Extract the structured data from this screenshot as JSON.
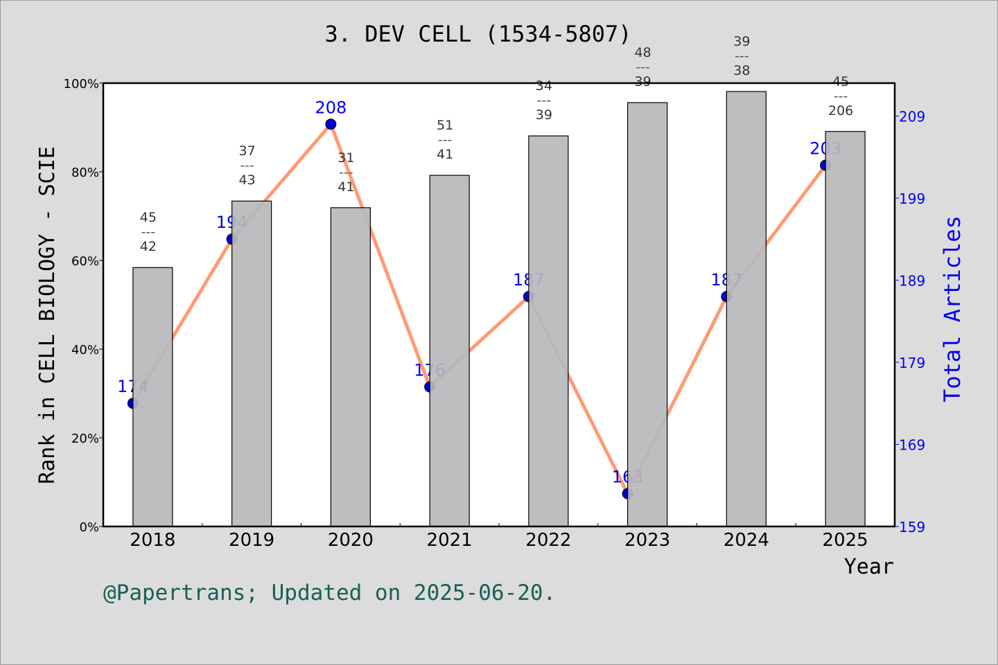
{
  "chart_data": {
    "type": "bar+line",
    "title": "3. DEV CELL (1534-5807)",
    "xlabel": "Year",
    "ylabel": "Rank in CELL BIOLOGY - SCIE",
    "y2label": "Total Articles",
    "categories": [
      "2018",
      "2019",
      "2020",
      "2021",
      "2022",
      "2023",
      "2024",
      "2025"
    ],
    "bars": {
      "values": [
        58.4,
        73.4,
        71.9,
        79.2,
        88.1,
        95.6,
        98.1,
        89.1
      ],
      "labels_top": [
        "45",
        "37",
        "31",
        "51",
        "34",
        "48",
        "39",
        "45"
      ],
      "labels_bottom": [
        "42",
        "43",
        "41",
        "41",
        "39",
        "39",
        "38",
        "206"
      ],
      "separator": "---",
      "color": "#b8b9bb"
    },
    "line": {
      "values": [
        174,
        194,
        208,
        176,
        187,
        163,
        187,
        203
      ],
      "color": "#ff9a74",
      "marker_color": "#0000cc"
    },
    "ylim": [
      0,
      100
    ],
    "yticks": [
      "0%",
      "20%",
      "40%",
      "60%",
      "80%",
      "100%"
    ],
    "y2lim": [
      159,
      213
    ],
    "y2ticks": [
      159,
      169,
      179,
      189,
      199,
      209
    ],
    "y2_color": "#0000ee",
    "grid": false
  },
  "footer": "@Papertrans; Updated on 2025-06-20."
}
